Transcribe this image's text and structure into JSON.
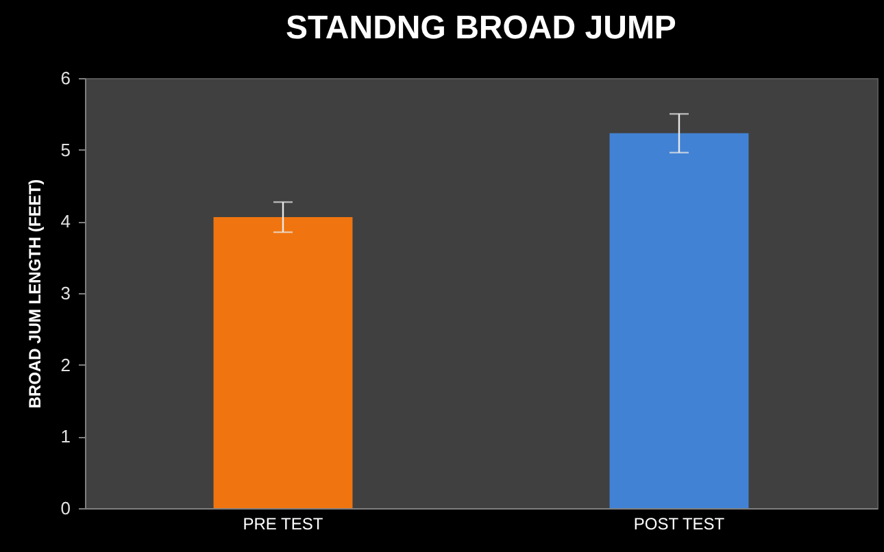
{
  "chart_data": {
    "type": "bar",
    "title": "STANDNG BROAD JUMP",
    "ylabel": "BROAD JUM LENGTH  (FEET)",
    "categories": [
      "PRE TEST",
      "POST TEST"
    ],
    "values": [
      4.06,
      5.23
    ],
    "colors": [
      "#f07510",
      "#4282d4"
    ],
    "errors": [
      0.21,
      0.27
    ],
    "ylim": [
      0,
      6
    ],
    "yticks": [
      0,
      1,
      2,
      3,
      4,
      5,
      6
    ],
    "grid": false
  }
}
